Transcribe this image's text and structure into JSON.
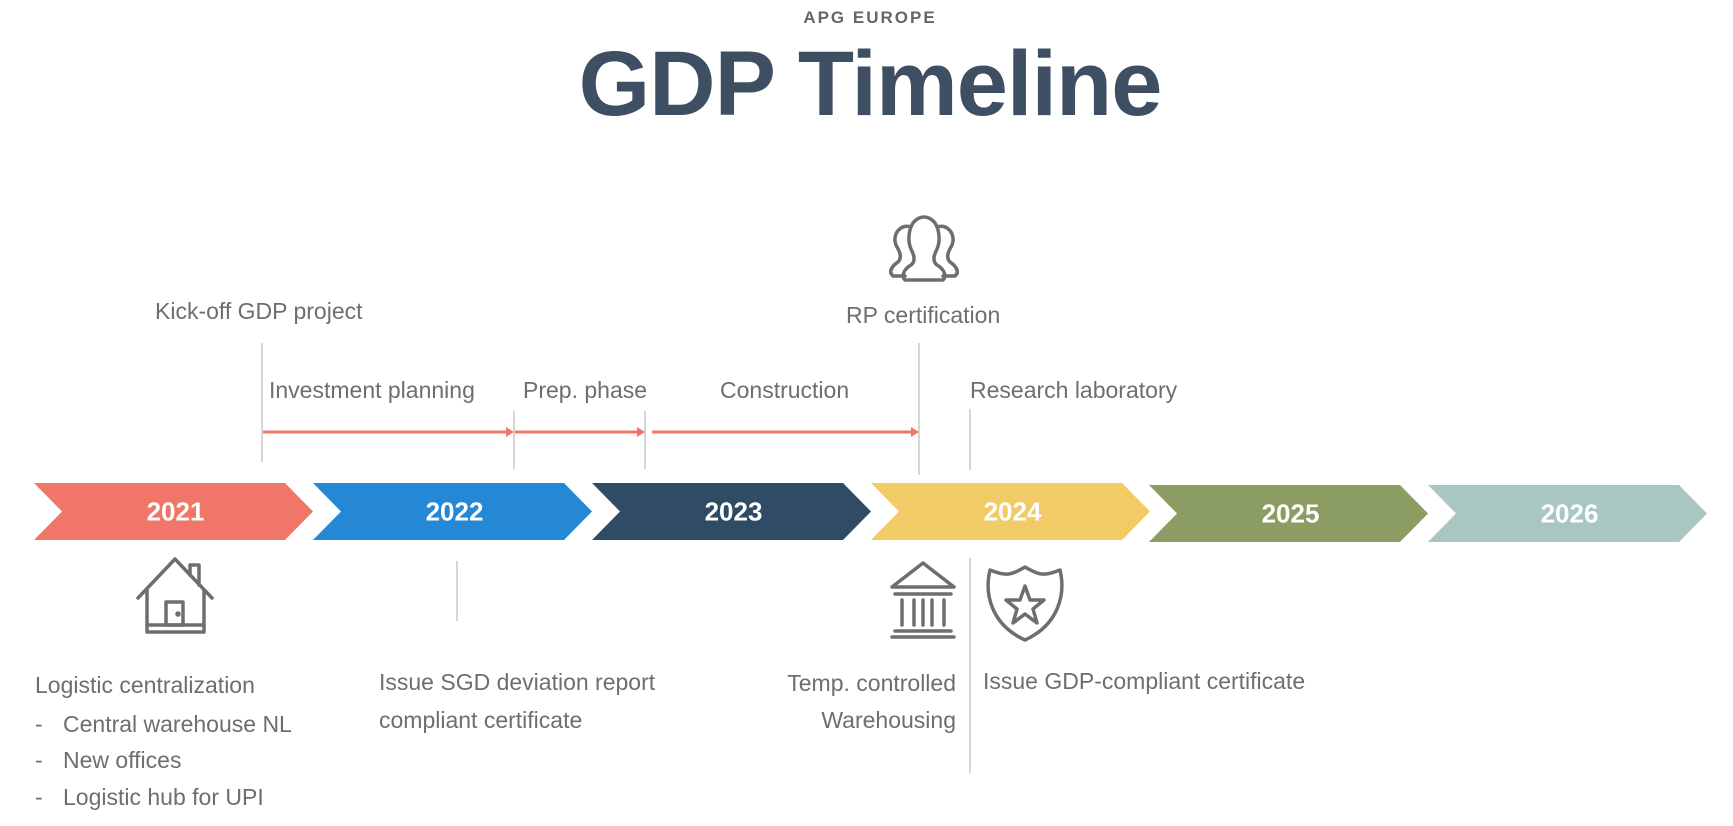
{
  "header": {
    "subtitle": "APG EUROPE",
    "title": "GDP Timeline"
  },
  "years": [
    {
      "label": "2021",
      "color": "#f07667"
    },
    {
      "label": "2022",
      "color": "#2488d4"
    },
    {
      "label": "2023",
      "color": "#304b66"
    },
    {
      "label": "2024",
      "color": "#f2cb67"
    },
    {
      "label": "2025",
      "color": "#8c9d64"
    },
    {
      "label": "2026",
      "color": "#a9c6c3"
    }
  ],
  "arrow_color": "#f07667",
  "above": {
    "kickoff": "Kick-off GDP project",
    "rp_certification": "RP certification",
    "phases": [
      "Investment planning",
      "Prep. phase",
      "Construction"
    ],
    "research_lab": "Research laboratory"
  },
  "below": {
    "logistic": {
      "title": "Logistic centralization",
      "bullets": [
        "Central warehouse NL",
        "New offices",
        "Logistic hub for UPI"
      ],
      "bullet_marker": "-"
    },
    "sgd": [
      "Issue SGD deviation report",
      "compliant certificate"
    ],
    "temp": [
      "Temp. controlled",
      "Warehousing"
    ],
    "gdp_cert": "Issue GDP-compliant certificate"
  },
  "icons": [
    "people-icon",
    "house-icon",
    "bank-icon",
    "shield-star-icon"
  ]
}
